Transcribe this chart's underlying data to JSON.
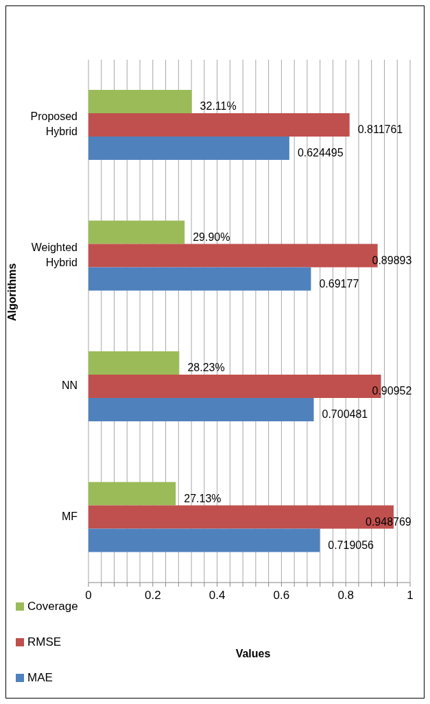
{
  "chart_data": {
    "type": "bar",
    "orientation": "horizontal",
    "xlabel": "Values",
    "ylabel": "Algorithms",
    "categories": [
      "Proposed Hybrid",
      "Weighted Hybrid",
      "NN",
      "MF"
    ],
    "series": [
      {
        "name": "Coverage",
        "color": "#9bbb59",
        "values": [
          0.3211,
          0.299,
          0.2823,
          0.2713
        ],
        "value_labels": [
          "32.11%",
          "29.90%",
          "28.23%",
          "27.13%"
        ]
      },
      {
        "name": "RMSE",
        "color": "#c0504d",
        "values": [
          0.811761,
          0.89893,
          0.90952,
          0.948769
        ],
        "value_labels": [
          "0.811761",
          "0.89893",
          "0.90952",
          "0.948769"
        ]
      },
      {
        "name": "MAE",
        "color": "#4f81bd",
        "values": [
          0.624495,
          0.69177,
          0.700481,
          0.719056
        ],
        "value_labels": [
          "0.624495",
          "0.69177",
          "0.700481",
          "0.719056"
        ]
      }
    ],
    "xlim": [
      0,
      1
    ],
    "xticks": [
      0,
      {
        "value": 0.04,
        "label": null
      },
      {
        "value": 0.08,
        "label": null
      },
      {
        "value": 0.12,
        "label": null
      },
      {
        "value": 0.16,
        "label": null
      },
      {
        "value": 0.2,
        "label": "0.2"
      },
      {
        "value": 0.24,
        "label": null
      },
      {
        "value": 0.28,
        "label": null
      },
      {
        "value": 0.32,
        "label": null
      },
      {
        "value": 0.36,
        "label": null
      },
      {
        "value": 0.4,
        "label": "0.4"
      },
      {
        "value": 0.44,
        "label": null
      },
      {
        "value": 0.48,
        "label": null
      },
      {
        "value": 0.52,
        "label": null
      },
      {
        "value": 0.56,
        "label": null
      },
      {
        "value": 0.6,
        "label": "0.6"
      },
      {
        "value": 0.64,
        "label": null
      },
      {
        "value": 0.68,
        "label": null
      },
      {
        "value": 0.72,
        "label": null
      },
      {
        "value": 0.76,
        "label": null
      },
      {
        "value": 0.8,
        "label": "0.8"
      },
      {
        "value": 0.84,
        "label": null
      },
      {
        "value": 0.88,
        "label": null
      },
      {
        "value": 0.92,
        "label": null
      },
      {
        "value": 0.96,
        "label": null
      },
      1
    ],
    "grid": "x",
    "legend": "bottom left"
  }
}
